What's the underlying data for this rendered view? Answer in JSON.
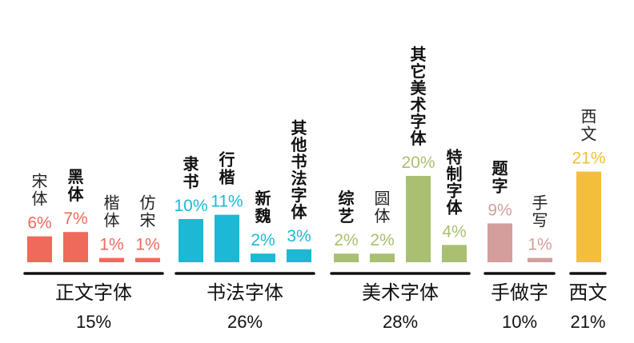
{
  "chart_data": {
    "type": "bar",
    "unit": "%",
    "groups": [
      {
        "name": "正文字体",
        "total": "15%",
        "color": "#EE6A5B",
        "bars": [
          {
            "label": "宋体",
            "value": 6,
            "value_label": "6%"
          },
          {
            "label": "黑体",
            "value": 7,
            "value_label": "7%"
          },
          {
            "label": "楷体",
            "value": 1,
            "value_label": "1%"
          },
          {
            "label": "仿宋",
            "value": 1,
            "value_label": "1%"
          }
        ]
      },
      {
        "name": "书法字体",
        "total": "26%",
        "color": "#1CB8D4",
        "bars": [
          {
            "label": "隶书",
            "value": 10,
            "value_label": "10%"
          },
          {
            "label": "行楷",
            "value": 11,
            "value_label": "11%"
          },
          {
            "label": "新魏",
            "value": 2,
            "value_label": "2%"
          },
          {
            "label": "其他书法字体",
            "value": 3,
            "value_label": "3%"
          }
        ]
      },
      {
        "name": "美术字体",
        "total": "28%",
        "color": "#A9BF72",
        "bars": [
          {
            "label": "综艺",
            "value": 2,
            "value_label": "2%"
          },
          {
            "label": "圆体",
            "value": 2,
            "value_label": "2%"
          },
          {
            "label": "其它美术字体",
            "value": 20,
            "value_label": "20%"
          },
          {
            "label": "特制字体",
            "value": 4,
            "value_label": "4%"
          }
        ]
      },
      {
        "name": "手做字",
        "total": "10%",
        "color": "#D39E9C",
        "bars": [
          {
            "label": "题字",
            "value": 9,
            "value_label": "9%"
          },
          {
            "label": "手写",
            "value": 1,
            "value_label": "1%"
          }
        ]
      },
      {
        "name": "西文",
        "total": "21%",
        "color": "#F2BE3B",
        "bars": [
          {
            "label": "西文",
            "value": 21,
            "value_label": "21%"
          }
        ]
      }
    ]
  }
}
